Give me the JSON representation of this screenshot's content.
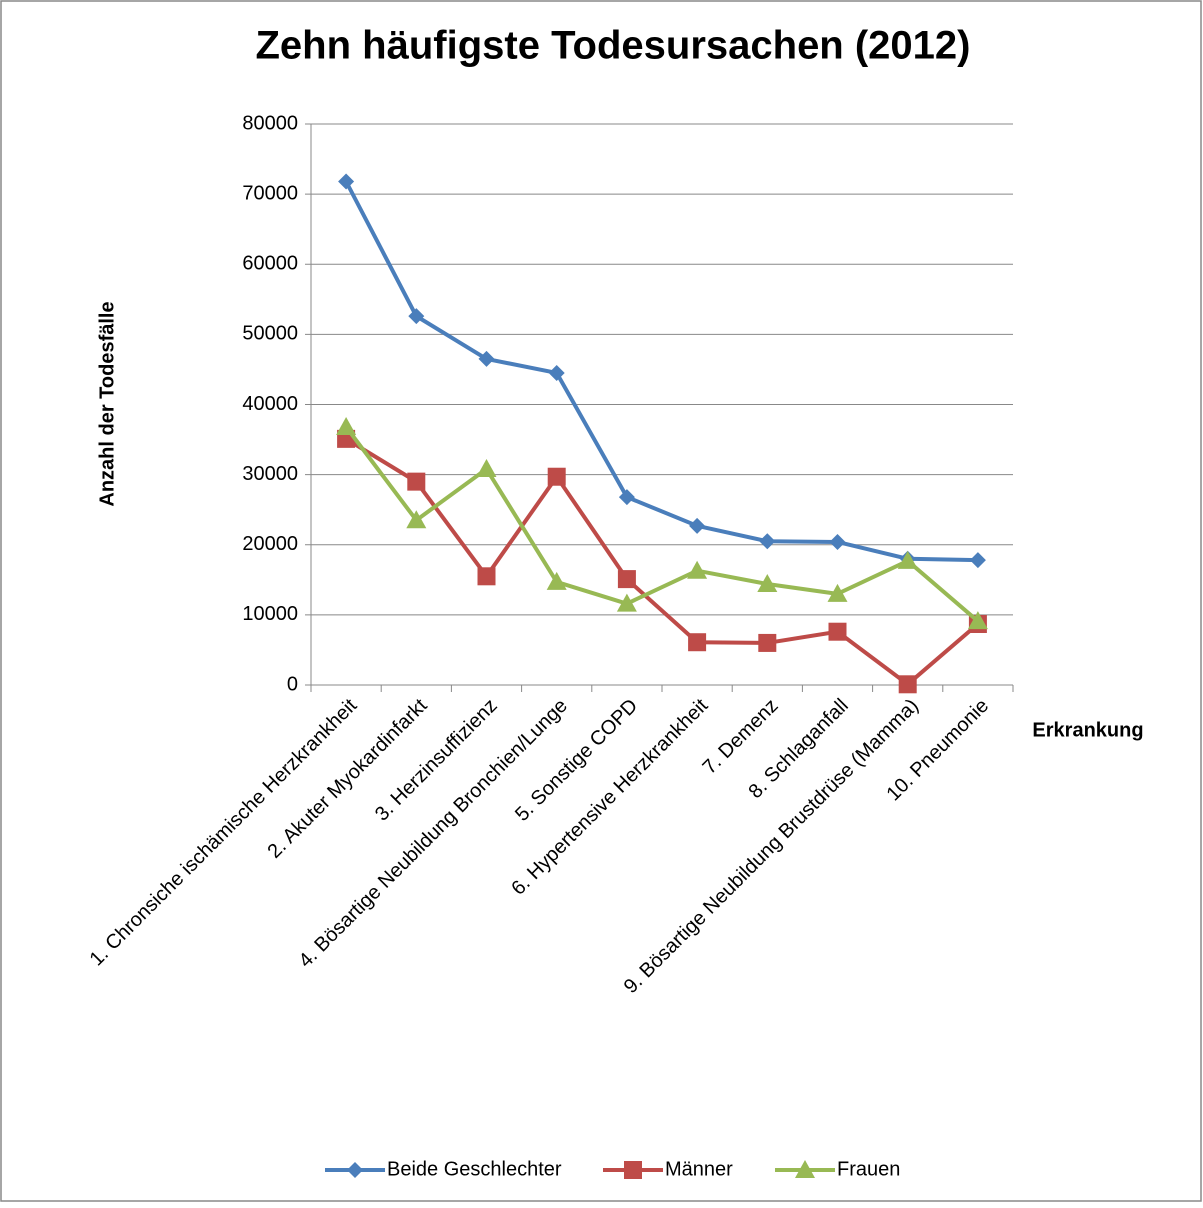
{
  "chart_data": {
    "type": "line",
    "title": "Zehn häufigste Todesursachen (2012)",
    "x_label": "Erkrankung",
    "y_label": "Anzahl der Todesfälle",
    "categories": [
      "1. Chronsiche ischämische Herzkrankheit",
      "2. Akuter Myokardinfarkt",
      "3. Herzinsuffizienz",
      "4. Bösartige Neubildung Bronchien/Lunge",
      "5. Sonstige COPD",
      "6. Hypertensive Herzkrankheit",
      "7. Demenz",
      "8. Schlaganfall",
      "9. Bösartige Neubildung Brustdrüse (Mamma)",
      "10. Pneumonie"
    ],
    "series": [
      {
        "name": "Beide Geschlechter",
        "color": "#4a7ebb",
        "marker": "diamond",
        "values": [
          71800,
          52600,
          46500,
          44500,
          26800,
          22700,
          20500,
          20400,
          18000,
          17800
        ]
      },
      {
        "name": "Männer",
        "color": "#be4b48",
        "marker": "square",
        "values": [
          35100,
          29000,
          15500,
          29700,
          15100,
          6100,
          6000,
          7600,
          100,
          8700
        ]
      },
      {
        "name": "Frauen",
        "color": "#98b954",
        "marker": "triangle",
        "values": [
          36800,
          23500,
          30800,
          14700,
          11600,
          16300,
          14400,
          13000,
          17700,
          9100
        ]
      }
    ],
    "ylim": [
      0,
      80000
    ],
    "yticks": [
      0,
      10000,
      20000,
      30000,
      40000,
      50000,
      60000,
      70000,
      80000
    ],
    "grid": true,
    "legend": "bottom"
  }
}
